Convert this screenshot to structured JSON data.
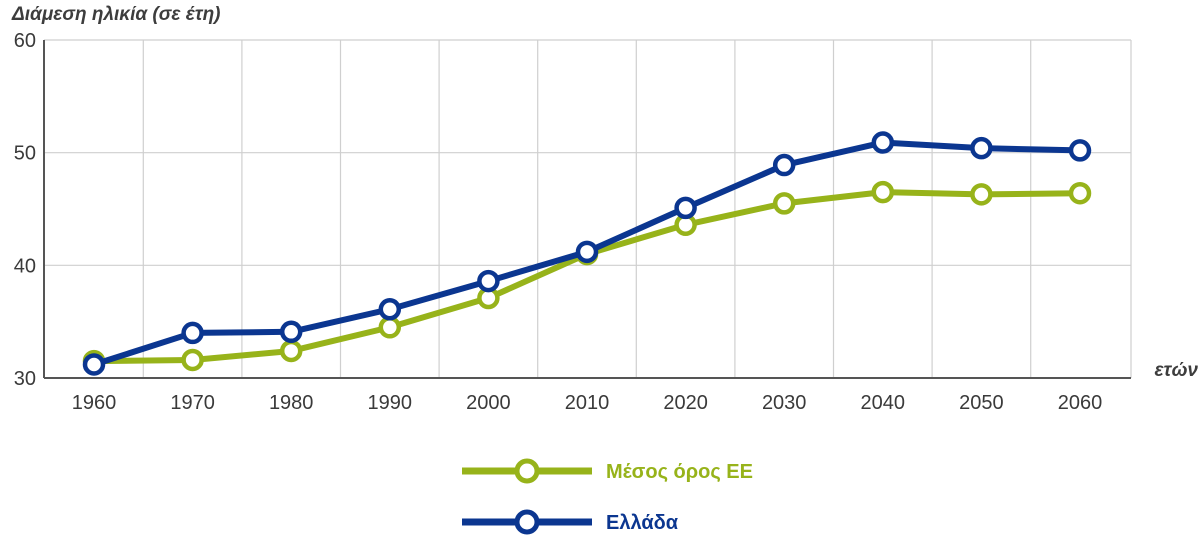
{
  "chart_data": {
    "type": "line",
    "ylabel": "Διάμεση ηλικία (σε έτη)",
    "xlabel": "ετών",
    "categories": [
      "1960",
      "1970",
      "1980",
      "1990",
      "2000",
      "2010",
      "2020",
      "2030",
      "2040",
      "2050",
      "2060"
    ],
    "yticks": [
      "30",
      "40",
      "50",
      "60"
    ],
    "ylim": [
      30,
      60
    ],
    "grid": true,
    "legend_position": "bottom-center",
    "series": [
      {
        "name": "Μέσος όρος ΕΕ",
        "color": "#97b31a",
        "values": [
          31.5,
          31.6,
          32.4,
          34.5,
          37.1,
          41.0,
          43.6,
          45.5,
          46.5,
          46.3,
          46.4
        ]
      },
      {
        "name": "Ελλάδα",
        "color": "#0b3690",
        "values": [
          31.2,
          34.0,
          34.1,
          36.1,
          38.6,
          41.2,
          45.1,
          48.9,
          50.9,
          50.4,
          50.2
        ]
      }
    ]
  }
}
